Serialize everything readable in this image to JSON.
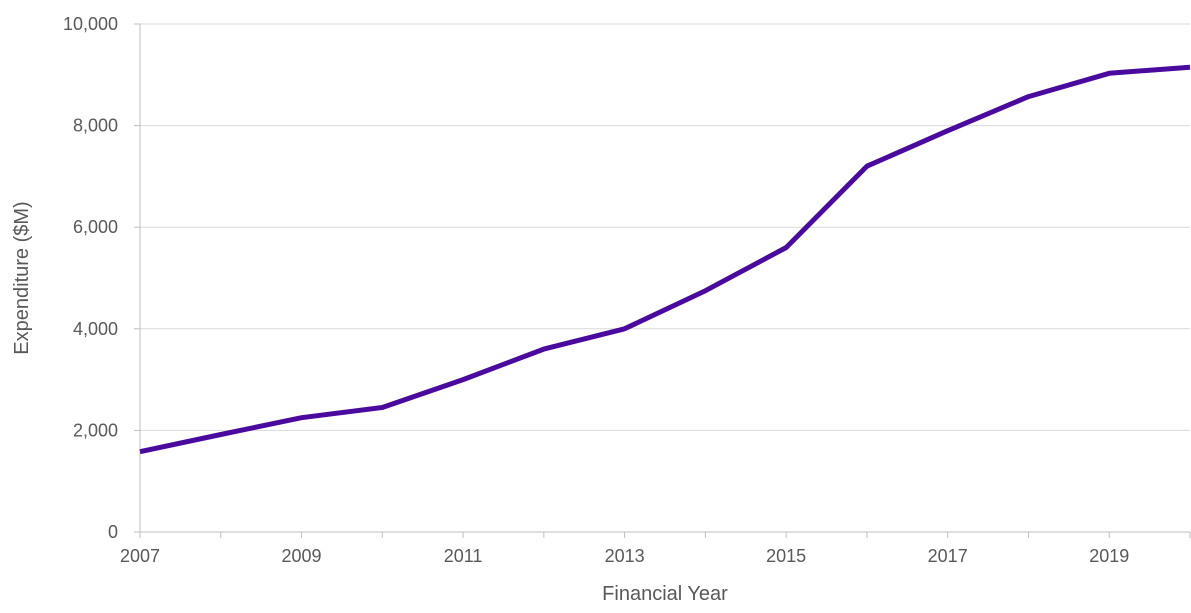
{
  "chart_data": {
    "type": "line",
    "title": "",
    "xlabel": "Financial Year",
    "ylabel": "Expenditure ($M)",
    "xlim": [
      2007,
      2020
    ],
    "ylim": [
      0,
      10000
    ],
    "x_ticks": [
      2007,
      2009,
      2011,
      2013,
      2015,
      2017,
      2019
    ],
    "x_tick_labels": [
      "2007",
      "2009",
      "2011",
      "2013",
      "2015",
      "2017",
      "2019"
    ],
    "y_ticks": [
      0,
      2000,
      4000,
      6000,
      8000,
      10000
    ],
    "y_tick_labels": [
      "0",
      "2,000",
      "4,000",
      "6,000",
      "8,000",
      "10,000"
    ],
    "grid": "horizontal",
    "legend": "none",
    "series": [
      {
        "color": "#4B0A9E",
        "x": [
          2007,
          2008,
          2009,
          2010,
          2011,
          2012,
          2013,
          2014,
          2015,
          2016,
          2017,
          2018,
          2019,
          2020
        ],
        "values": [
          1580,
          1920,
          2250,
          2450,
          3000,
          3600,
          4000,
          4750,
          5600,
          7200,
          7900,
          8570,
          9030,
          9150
        ]
      }
    ]
  },
  "colors": {
    "line": "#4B0A9E",
    "grid": "#d9d9d9",
    "axis": "#bfbfbf",
    "text": "#595959"
  }
}
